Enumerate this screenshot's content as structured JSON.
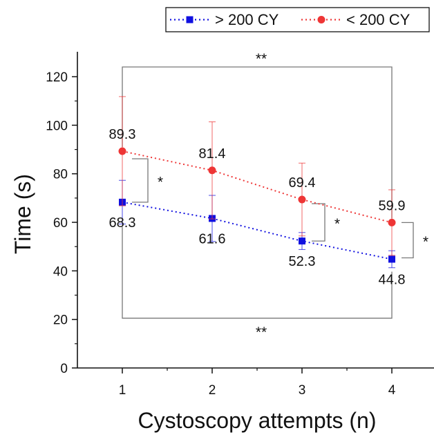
{
  "chart_data": {
    "type": "line",
    "xlabel": "Cystoscopy attempts (n)",
    "ylabel": "Time (s)",
    "categories": [
      "1",
      "2",
      "3",
      "4"
    ],
    "x": [
      1,
      2,
      3,
      4
    ],
    "xlim": [
      0.5,
      4.5
    ],
    "ylim": [
      0,
      130
    ],
    "yticks": [
      0,
      20,
      40,
      60,
      80,
      100,
      120
    ],
    "grid": false,
    "legend_position": "top-right",
    "series": [
      {
        "name": "> 200 CY",
        "color": "#1010e0",
        "marker": "square",
        "values": [
          68.3,
          61.6,
          52.3,
          44.8
        ],
        "labels": [
          "68.3",
          "61.6",
          "52.3",
          "44.8"
        ],
        "error": [
          9,
          9.5,
          3.5,
          3.5
        ]
      },
      {
        "name": "< 200 CY",
        "color": "#ee3535",
        "marker": "circle",
        "values": [
          89.3,
          81.4,
          69.4,
          59.9
        ],
        "labels": [
          "89.3",
          "81.4",
          "69.4",
          "59.9"
        ],
        "error": [
          22.5,
          20,
          15,
          13.5
        ]
      }
    ],
    "annotations": {
      "pair_marks": [
        "*",
        "*",
        "*"
      ],
      "overall_marks": [
        "**",
        "**"
      ]
    }
  }
}
